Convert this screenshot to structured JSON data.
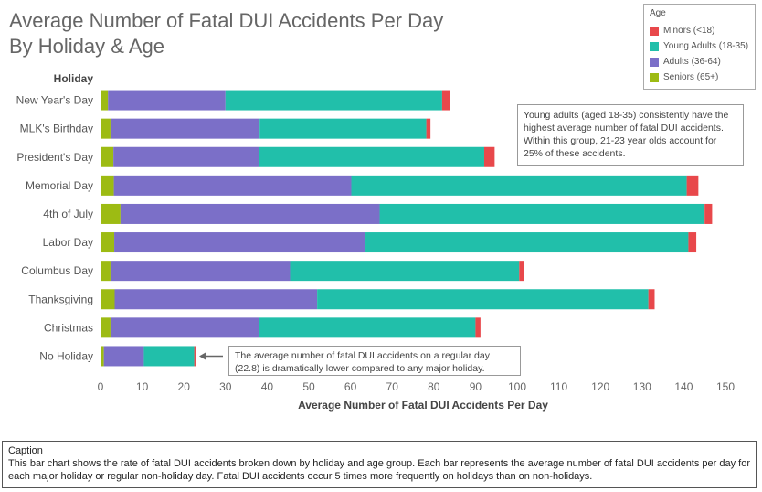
{
  "title_line1": "Average Number of Fatal DUI Accidents Per Day",
  "title_line2": "By Holiday & Age",
  "legend": {
    "title": "Age",
    "items": [
      {
        "label": "Minors (<18)",
        "color": "#e8484b"
      },
      {
        "label": "Young Adults (18-35)",
        "color": "#21bfaa"
      },
      {
        "label": "Adults (36-64)",
        "color": "#7b6fc8"
      },
      {
        "label": "Seniors (65+)",
        "color": "#9dbb13"
      }
    ]
  },
  "annotations": {
    "young_adults": "Young adults (aged 18-35) consistently have the highest average number of fatal DUI accidents. Within this group, 21-23 year olds account for 25% of these accidents.",
    "no_holiday": "The average number of fatal DUI accidents on a regular day (22.8) is dramatically lower compared to any major holiday."
  },
  "caption": {
    "heading": "Caption",
    "text": "This bar chart shows the rate of fatal DUI accidents broken down by holiday and age group. Each bar represents the average number of fatal DUI accidents per day for each major holiday or regular non-holiday day. Fatal DUI accidents occur 5 times more frequently on holidays than on non-holidays."
  },
  "chart_data": {
    "type": "bar",
    "orientation": "horizontal",
    "stacked": true,
    "title": "Average Number of Fatal DUI Accidents Per Day By Holiday & Age",
    "ylabel": "Holiday",
    "xlabel": "Average Number of Fatal DUI Accidents Per Day",
    "xlim": [
      0,
      155
    ],
    "xticks": [
      0,
      10,
      20,
      30,
      40,
      50,
      60,
      70,
      80,
      90,
      100,
      110,
      120,
      130,
      140,
      150
    ],
    "grid": false,
    "legend_position": "top-right",
    "categories": [
      "New Year's Day",
      "MLK's Birthday",
      "President's Day",
      "Memorial Day",
      "4th of July",
      "Labor Day",
      "Columbus Day",
      "Thanksgiving",
      "Christmas",
      "No Holiday"
    ],
    "series": [
      {
        "name": "Seniors (65+)",
        "color": "#9dbb13",
        "values": [
          1.8,
          2.4,
          3.1,
          3.2,
          4.8,
          3.3,
          2.4,
          3.4,
          2.4,
          0.8
        ]
      },
      {
        "name": "Adults (36-64)",
        "color": "#7b6fc8",
        "values": [
          28.2,
          35.8,
          35.0,
          57.0,
          62.2,
          60.3,
          43.1,
          48.6,
          35.6,
          9.6
        ]
      },
      {
        "name": "Young Adults (18-35)",
        "color": "#21bfaa",
        "values": [
          52.0,
          40.0,
          54.0,
          80.5,
          78.0,
          77.5,
          55.0,
          79.5,
          52.0,
          12.1
        ]
      },
      {
        "name": "Minors (<18)",
        "color": "#e8484b",
        "values": [
          1.8,
          1.0,
          2.5,
          2.8,
          1.8,
          1.9,
          1.2,
          1.5,
          1.2,
          0.3
        ]
      }
    ]
  }
}
